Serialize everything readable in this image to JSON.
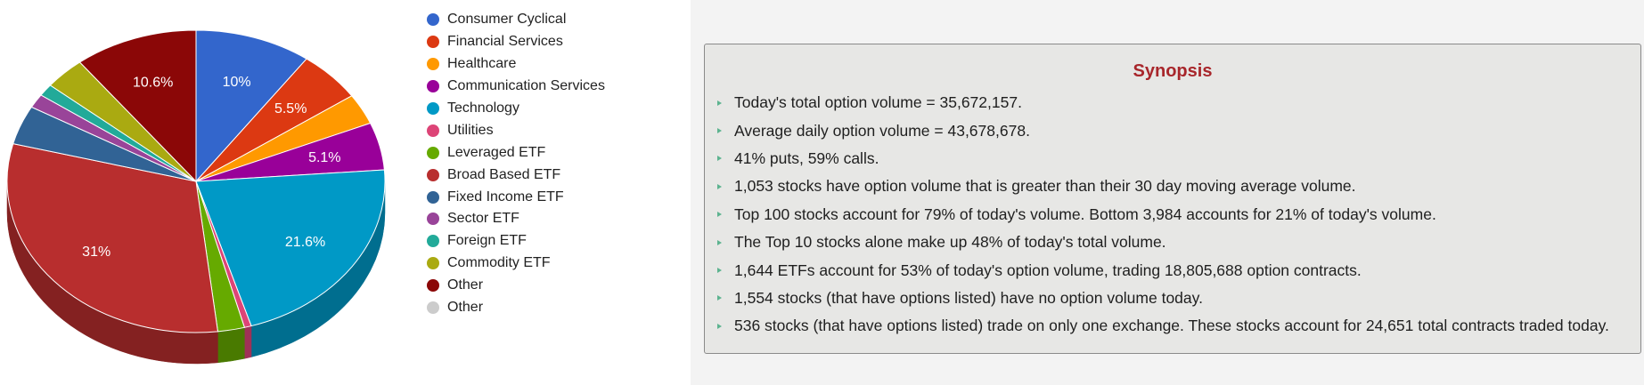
{
  "chart_data": {
    "type": "pie",
    "title": "",
    "legend_position": "right",
    "slices": [
      {
        "label": "Consumer Cyclical",
        "value": 10,
        "color": "#3366cc",
        "show_label": true,
        "value_label": "10%"
      },
      {
        "label": "Financial Services",
        "value": 5.5,
        "color": "#dc3912",
        "show_label": true,
        "value_label": "5.5%"
      },
      {
        "label": "Healthcare",
        "value": 3.3,
        "color": "#ff9900",
        "show_label": false,
        "value_label": ""
      },
      {
        "label": "Communication Services",
        "value": 5.1,
        "color": "#990099",
        "show_label": true,
        "value_label": "5.1%"
      },
      {
        "label": "Technology",
        "value": 21.6,
        "color": "#0099c6",
        "show_label": true,
        "value_label": "21.6%"
      },
      {
        "label": "Utilities",
        "value": 0.6,
        "color": "#dd4477",
        "show_label": false,
        "value_label": ""
      },
      {
        "label": "Leveraged ETF",
        "value": 2.3,
        "color": "#66aa00",
        "show_label": false,
        "value_label": ""
      },
      {
        "label": "Broad Based ETF",
        "value": 31,
        "color": "#b82e2e",
        "show_label": true,
        "value_label": "31%"
      },
      {
        "label": "Fixed Income ETF",
        "value": 4.2,
        "color": "#316395",
        "show_label": false,
        "value_label": ""
      },
      {
        "label": "Sector ETF",
        "value": 1.5,
        "color": "#994499",
        "show_label": false,
        "value_label": ""
      },
      {
        "label": "Foreign ETF",
        "value": 1.3,
        "color": "#22aa99",
        "show_label": false,
        "value_label": ""
      },
      {
        "label": "Commodity ETF",
        "value": 3.5,
        "color": "#aaaa11",
        "show_label": false,
        "value_label": ""
      },
      {
        "label": "Other",
        "value": 10.6,
        "color": "#8b0707",
        "show_label": true,
        "value_label": "10.6%"
      },
      {
        "label": "Other",
        "value": 0,
        "color": "#cccccc",
        "show_label": false,
        "value_label": ""
      }
    ]
  },
  "synopsis": {
    "title": "Synopsis",
    "bullet_color": "#5cb38f",
    "items": [
      "Today's total option volume = 35,672,157.",
      "Average daily option volume = 43,678,678.",
      "41% puts, 59% calls.",
      "1,053 stocks have option volume that is greater than their 30 day moving average volume.",
      "Top 100 stocks account for 79% of today's volume. Bottom 3,984 accounts for 21% of today's volume.",
      "The Top 10 stocks alone make up 48% of today's total volume.",
      "1,644 ETFs account for 53% of today's option volume, trading 18,805,688 option contracts.",
      "1,554 stocks (that have options listed) have no option volume today.",
      "536 stocks (that have options listed) trade on only one exchange. These stocks account for 24,651 total contracts traded today."
    ]
  }
}
